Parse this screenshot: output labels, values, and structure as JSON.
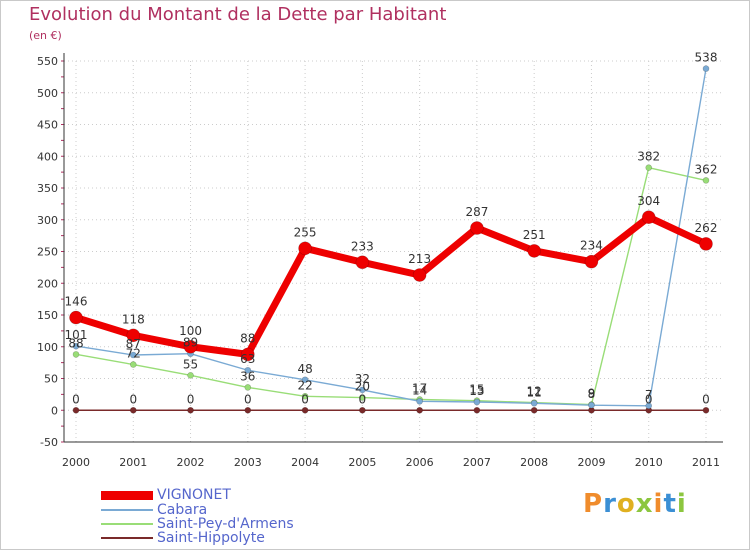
{
  "title": "Evolution du Montant de la Dette par Habitant",
  "unit": "(en €)",
  "logo": "Proxiti",
  "colors": {
    "title": "#b03060",
    "grid": "#cccccc",
    "axis": "#333333",
    "tick_mark": "#b03060",
    "legend_text": "#5566cc",
    "logo": [
      "#f08c2c",
      "#3b8fd4",
      "#e0b020",
      "#8cc63f",
      "#f08c2c",
      "#3b8fd4",
      "#8cc63f"
    ]
  },
  "chart_data": {
    "type": "line",
    "title": "Evolution du Montant de la Dette par Habitant",
    "ylabel": "(en €)",
    "xlabel": "",
    "x": [
      "2000",
      "2001",
      "2002",
      "2003",
      "2004",
      "2005",
      "2006",
      "2007",
      "2008",
      "2009",
      "2010",
      "2011"
    ],
    "ylim": [
      -50,
      550
    ],
    "yticks": [
      -50,
      0,
      50,
      100,
      150,
      200,
      250,
      300,
      350,
      400,
      450,
      500,
      550
    ],
    "grid": true,
    "legend": "bottom-left",
    "series": [
      {
        "name": "Saint-Hippolyte",
        "color": "#7a2a2a",
        "values": [
          0,
          0,
          0,
          0,
          0,
          0,
          0,
          0,
          0,
          0,
          0,
          0
        ],
        "labels": [
          "0",
          "0",
          "0",
          "0",
          "0",
          "0",
          "",
          "",
          "",
          "",
          "0",
          "0"
        ]
      },
      {
        "name": "Saint-Pey-d'Armens",
        "color": "#99dd77",
        "values": [
          88,
          72,
          55,
          36,
          22,
          20,
          17,
          15,
          12,
          9,
          382,
          362
        ],
        "labels": [
          "88",
          "72",
          "55",
          "36",
          "22",
          "20",
          "17",
          "15",
          "12",
          "9",
          "382",
          "362"
        ]
      },
      {
        "name": "Cabara",
        "color": "#7aaad4",
        "values": [
          101,
          87,
          89,
          63,
          48,
          32,
          14,
          13,
          11,
          8,
          7,
          538
        ],
        "labels": [
          "101",
          "87",
          "89",
          "63",
          "48",
          "32",
          "14",
          "13",
          "11",
          "8",
          "7",
          "538"
        ]
      },
      {
        "name": "VIGNONET",
        "color": "#ee0000",
        "values": [
          146,
          118,
          100,
          88,
          255,
          233,
          213,
          287,
          251,
          234,
          304,
          262
        ],
        "labels": [
          "146",
          "118",
          "100",
          "88",
          "255",
          "233",
          "213",
          "287",
          "251",
          "234",
          "304",
          "262"
        ]
      }
    ]
  },
  "legend": [
    {
      "name": "VIGNONET",
      "color": "#ee0000",
      "thickness": 9
    },
    {
      "name": "Cabara",
      "color": "#7aaad4",
      "thickness": 2
    },
    {
      "name": "Saint-Pey-d'Armens",
      "color": "#99dd77",
      "thickness": 2
    },
    {
      "name": "Saint-Hippolyte",
      "color": "#7a2a2a",
      "thickness": 2
    }
  ]
}
